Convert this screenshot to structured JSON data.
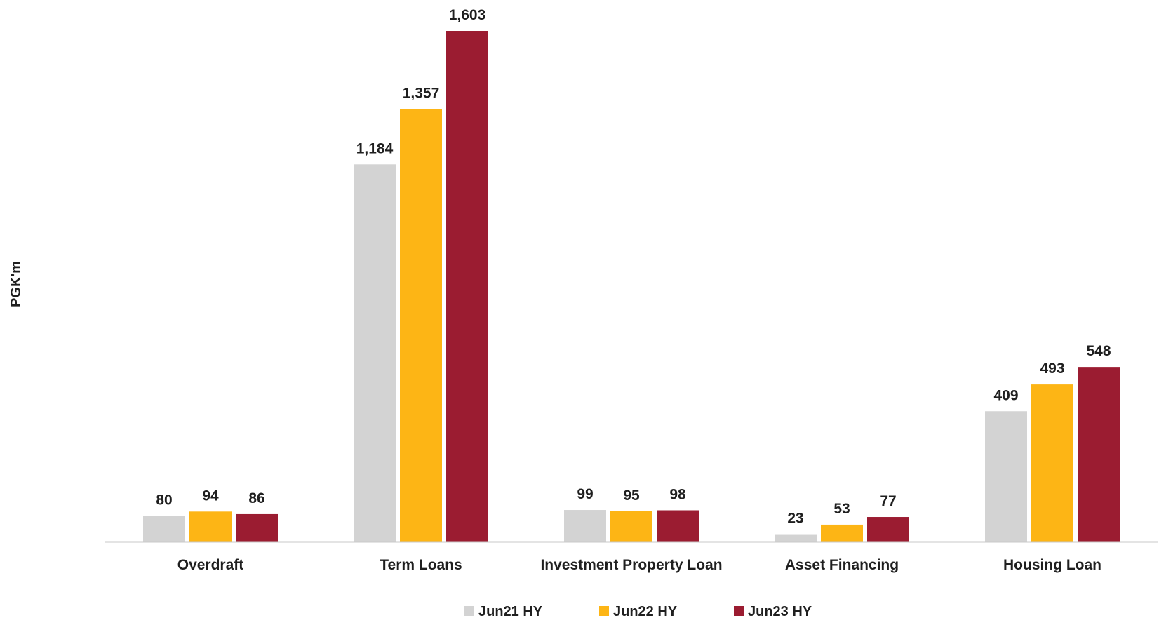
{
  "chart_data": {
    "type": "bar",
    "ylabel": "PGK'm",
    "categories": [
      "Overdraft",
      "Term Loans",
      "Investment Property Loan",
      "Asset Financing",
      "Housing Loan"
    ],
    "series": [
      {
        "name": "Jun21 HY",
        "color": "#d3d3d3",
        "values": [
          80,
          1184,
          99,
          23,
          409
        ],
        "labels": [
          "80",
          "1,184",
          "99",
          "23",
          "409"
        ]
      },
      {
        "name": "Jun22 HY",
        "color": "#fdb515",
        "values": [
          94,
          1357,
          95,
          53,
          493
        ],
        "labels": [
          "94",
          "1,357",
          "95",
          "53",
          "493"
        ]
      },
      {
        "name": "Jun23 HY",
        "color": "#9b1c31",
        "values": [
          86,
          1603,
          98,
          77,
          548
        ],
        "labels": [
          "86",
          "1,603",
          "98",
          "77",
          "548"
        ]
      }
    ],
    "ylim": [
      0,
      1650
    ],
    "grid": false,
    "legend": "bottom-center",
    "baseline_color": "#c8c8c8"
  }
}
